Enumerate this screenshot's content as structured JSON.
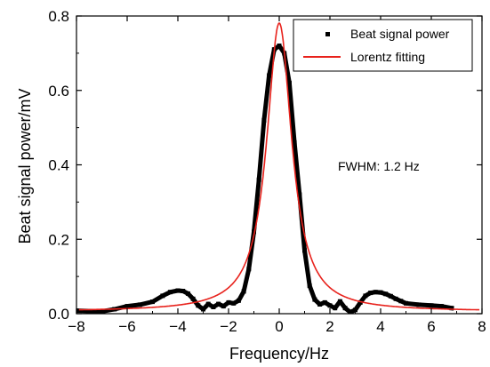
{
  "chart_data": {
    "type": "line",
    "xlabel": "Frequency/Hz",
    "ylabel": "Beat signal power/mV",
    "xlim": [
      -8,
      8
    ],
    "ylim": [
      0,
      0.8
    ],
    "xticks": [
      -8,
      -6,
      -4,
      -2,
      0,
      2,
      4,
      6,
      8
    ],
    "xtick_labels": [
      "−8",
      "−6",
      "−4",
      "−2",
      "0",
      "2",
      "4",
      "6",
      "8"
    ],
    "yticks": [
      0.0,
      0.2,
      0.4,
      0.6,
      0.8
    ],
    "ytick_labels": [
      "0.0",
      "0.2",
      "0.4",
      "0.6",
      "0.8"
    ],
    "grid": false,
    "legend_position": "top-right",
    "annotation": "FWHM: 1.2 Hz",
    "series": [
      {
        "name": "Beat signal power",
        "style": "black square markers (dense)",
        "color": "#000000",
        "x": [
          -8.0,
          -7.0,
          -6.5,
          -6.0,
          -5.5,
          -5.0,
          -4.6,
          -4.3,
          -4.0,
          -3.8,
          -3.6,
          -3.4,
          -3.2,
          -3.0,
          -2.8,
          -2.6,
          -2.4,
          -2.2,
          -2.0,
          -1.8,
          -1.6,
          -1.4,
          -1.2,
          -1.0,
          -0.8,
          -0.6,
          -0.4,
          -0.2,
          0.0,
          0.2,
          0.4,
          0.6,
          0.8,
          1.0,
          1.2,
          1.4,
          1.6,
          1.8,
          2.0,
          2.2,
          2.4,
          2.6,
          2.8,
          3.0,
          3.2,
          3.4,
          3.6,
          3.8,
          4.0,
          4.2,
          4.4,
          4.6,
          4.8,
          5.0,
          5.5,
          6.0,
          6.4,
          6.8
        ],
        "y": [
          0.008,
          0.006,
          0.012,
          0.02,
          0.024,
          0.032,
          0.048,
          0.058,
          0.062,
          0.061,
          0.054,
          0.04,
          0.022,
          0.012,
          0.026,
          0.018,
          0.026,
          0.02,
          0.03,
          0.028,
          0.035,
          0.06,
          0.12,
          0.22,
          0.36,
          0.52,
          0.64,
          0.71,
          0.72,
          0.7,
          0.62,
          0.46,
          0.32,
          0.17,
          0.075,
          0.038,
          0.025,
          0.03,
          0.022,
          0.015,
          0.033,
          0.015,
          0.004,
          0.01,
          0.03,
          0.048,
          0.056,
          0.058,
          0.057,
          0.053,
          0.047,
          0.04,
          0.034,
          0.028,
          0.024,
          0.022,
          0.02,
          0.015
        ]
      },
      {
        "name": "Lorentz fitting",
        "style": "red solid line",
        "color": "#e8221c",
        "x0": 0.0,
        "amplitude": 0.775,
        "fwhm": 1.2,
        "offset": 0.006,
        "x_range": [
          -7.9,
          7.9
        ]
      }
    ]
  }
}
